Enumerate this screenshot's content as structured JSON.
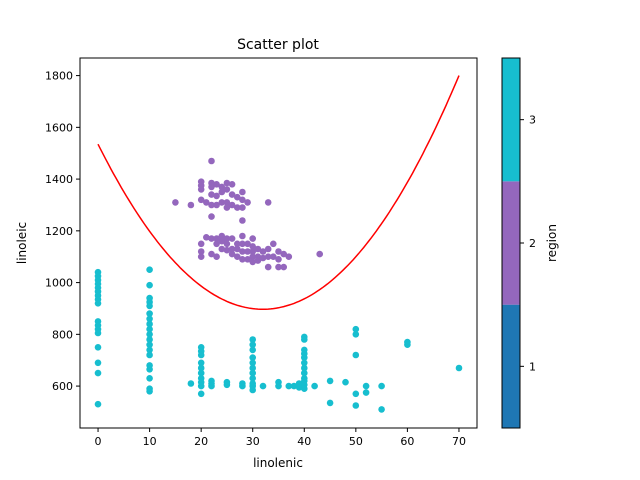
{
  "chart_data": {
    "type": "scatter",
    "title": "Scatter plot",
    "xlabel": "linolenic",
    "ylabel": "linoleic",
    "xlim": [
      -3.5,
      73.5
    ],
    "ylim": [
      438,
      1868
    ],
    "x_ticks": [
      0,
      10,
      20,
      30,
      40,
      50,
      60,
      70
    ],
    "y_ticks": [
      600,
      800,
      1000,
      1200,
      1400,
      1600,
      1800
    ],
    "grid": false,
    "colorbar": {
      "label": "region",
      "ticks": [
        "1",
        "2",
        "3"
      ],
      "colors": [
        "#1f77b4",
        "#9467bd",
        "#17becf"
      ]
    },
    "curve": {
      "color": "#ff0000",
      "description_points": [
        [
          0,
          1535
        ],
        [
          32,
          897
        ],
        [
          70,
          1800
        ]
      ]
    },
    "series": [
      {
        "region": 2,
        "color": "#9467bd",
        "points": [
          [
            15,
            1310
          ],
          [
            18,
            1300
          ],
          [
            20,
            1390
          ],
          [
            20,
            1375
          ],
          [
            20,
            1360
          ],
          [
            20,
            1320
          ],
          [
            20,
            1150
          ],
          [
            20,
            1120
          ],
          [
            20,
            1100
          ],
          [
            21,
            1310
          ],
          [
            21,
            1175
          ],
          [
            22,
            1470
          ],
          [
            22,
            1385
          ],
          [
            22,
            1370
          ],
          [
            22,
            1340
          ],
          [
            22,
            1300
          ],
          [
            22,
            1255
          ],
          [
            22,
            1170
          ],
          [
            22,
            1110
          ],
          [
            23,
            1380
          ],
          [
            23,
            1335
          ],
          [
            23,
            1300
          ],
          [
            23,
            1170
          ],
          [
            23,
            1150
          ],
          [
            23,
            1100
          ],
          [
            24,
            1370
          ],
          [
            24,
            1350
          ],
          [
            24,
            1310
          ],
          [
            24,
            1180
          ],
          [
            24,
            1160
          ],
          [
            24,
            1130
          ],
          [
            25,
            1385
          ],
          [
            25,
            1360
          ],
          [
            25,
            1310
          ],
          [
            25,
            1290
          ],
          [
            25,
            1170
          ],
          [
            25,
            1150
          ],
          [
            25,
            1125
          ],
          [
            26,
            1380
          ],
          [
            26,
            1340
          ],
          [
            26,
            1300
          ],
          [
            26,
            1170
          ],
          [
            26,
            1130
          ],
          [
            26,
            1110
          ],
          [
            27,
            1330
          ],
          [
            27,
            1290
          ],
          [
            27,
            1150
          ],
          [
            27,
            1130
          ],
          [
            27,
            1100
          ],
          [
            28,
            1350
          ],
          [
            28,
            1320
          ],
          [
            28,
            1290
          ],
          [
            28,
            1240
          ],
          [
            28,
            1180
          ],
          [
            28,
            1150
          ],
          [
            28,
            1120
          ],
          [
            28,
            1090
          ],
          [
            29,
            1310
          ],
          [
            29,
            1150
          ],
          [
            29,
            1120
          ],
          [
            29,
            1090
          ],
          [
            30,
            1170
          ],
          [
            30,
            1140
          ],
          [
            30,
            1120
          ],
          [
            30,
            1100
          ],
          [
            30,
            1080
          ],
          [
            31,
            1130
          ],
          [
            31,
            1100
          ],
          [
            31,
            1085
          ],
          [
            32,
            1120
          ],
          [
            32,
            1095
          ],
          [
            33,
            1310
          ],
          [
            33,
            1130
          ],
          [
            33,
            1100
          ],
          [
            33,
            1060
          ],
          [
            34,
            1150
          ],
          [
            34,
            1100
          ],
          [
            35,
            1120
          ],
          [
            35,
            1090
          ],
          [
            35,
            1060
          ],
          [
            36,
            1110
          ],
          [
            36,
            1060
          ],
          [
            37,
            1100
          ],
          [
            43,
            1110
          ]
        ]
      },
      {
        "region": 3,
        "color": "#17becf",
        "points": [
          [
            0,
            1040
          ],
          [
            0,
            1025
          ],
          [
            0,
            1010
          ],
          [
            0,
            995
          ],
          [
            0,
            980
          ],
          [
            0,
            965
          ],
          [
            0,
            950
          ],
          [
            0,
            935
          ],
          [
            0,
            920
          ],
          [
            0,
            850
          ],
          [
            0,
            835
          ],
          [
            0,
            820
          ],
          [
            0,
            805
          ],
          [
            0,
            750
          ],
          [
            0,
            690
          ],
          [
            0,
            650
          ],
          [
            0,
            530
          ],
          [
            10,
            1050
          ],
          [
            10,
            990
          ],
          [
            10,
            940
          ],
          [
            10,
            925
          ],
          [
            10,
            910
          ],
          [
            10,
            880
          ],
          [
            10,
            860
          ],
          [
            10,
            840
          ],
          [
            10,
            820
          ],
          [
            10,
            800
          ],
          [
            10,
            780
          ],
          [
            10,
            760
          ],
          [
            10,
            740
          ],
          [
            10,
            720
          ],
          [
            10,
            680
          ],
          [
            10,
            665
          ],
          [
            10,
            630
          ],
          [
            10,
            590
          ],
          [
            10,
            580
          ],
          [
            18,
            610
          ],
          [
            20,
            750
          ],
          [
            20,
            735
          ],
          [
            20,
            720
          ],
          [
            20,
            690
          ],
          [
            20,
            670
          ],
          [
            20,
            650
          ],
          [
            20,
            630
          ],
          [
            20,
            615
          ],
          [
            20,
            600
          ],
          [
            20,
            570
          ],
          [
            22,
            620
          ],
          [
            22,
            610
          ],
          [
            22,
            600
          ],
          [
            25,
            615
          ],
          [
            25,
            605
          ],
          [
            28,
            610
          ],
          [
            28,
            600
          ],
          [
            30,
            780
          ],
          [
            30,
            760
          ],
          [
            30,
            740
          ],
          [
            30,
            710
          ],
          [
            30,
            690
          ],
          [
            30,
            670
          ],
          [
            30,
            650
          ],
          [
            30,
            630
          ],
          [
            30,
            610
          ],
          [
            30,
            600
          ],
          [
            30,
            585
          ],
          [
            32,
            600
          ],
          [
            35,
            615
          ],
          [
            35,
            600
          ],
          [
            37,
            600
          ],
          [
            38,
            600
          ],
          [
            39,
            610
          ],
          [
            39,
            595
          ],
          [
            40,
            790
          ],
          [
            40,
            780
          ],
          [
            40,
            740
          ],
          [
            40,
            725
          ],
          [
            40,
            710
          ],
          [
            40,
            690
          ],
          [
            40,
            670
          ],
          [
            40,
            650
          ],
          [
            40,
            630
          ],
          [
            40,
            620
          ],
          [
            40,
            605
          ],
          [
            40,
            590
          ],
          [
            42,
            600
          ],
          [
            45,
            620
          ],
          [
            45,
            535
          ],
          [
            48,
            615
          ],
          [
            50,
            820
          ],
          [
            50,
            800
          ],
          [
            50,
            720
          ],
          [
            50,
            570
          ],
          [
            50,
            525
          ],
          [
            52,
            600
          ],
          [
            52,
            575
          ],
          [
            55,
            600
          ],
          [
            55,
            510
          ],
          [
            60,
            770
          ],
          [
            60,
            760
          ],
          [
            70,
            670
          ]
        ]
      }
    ]
  }
}
